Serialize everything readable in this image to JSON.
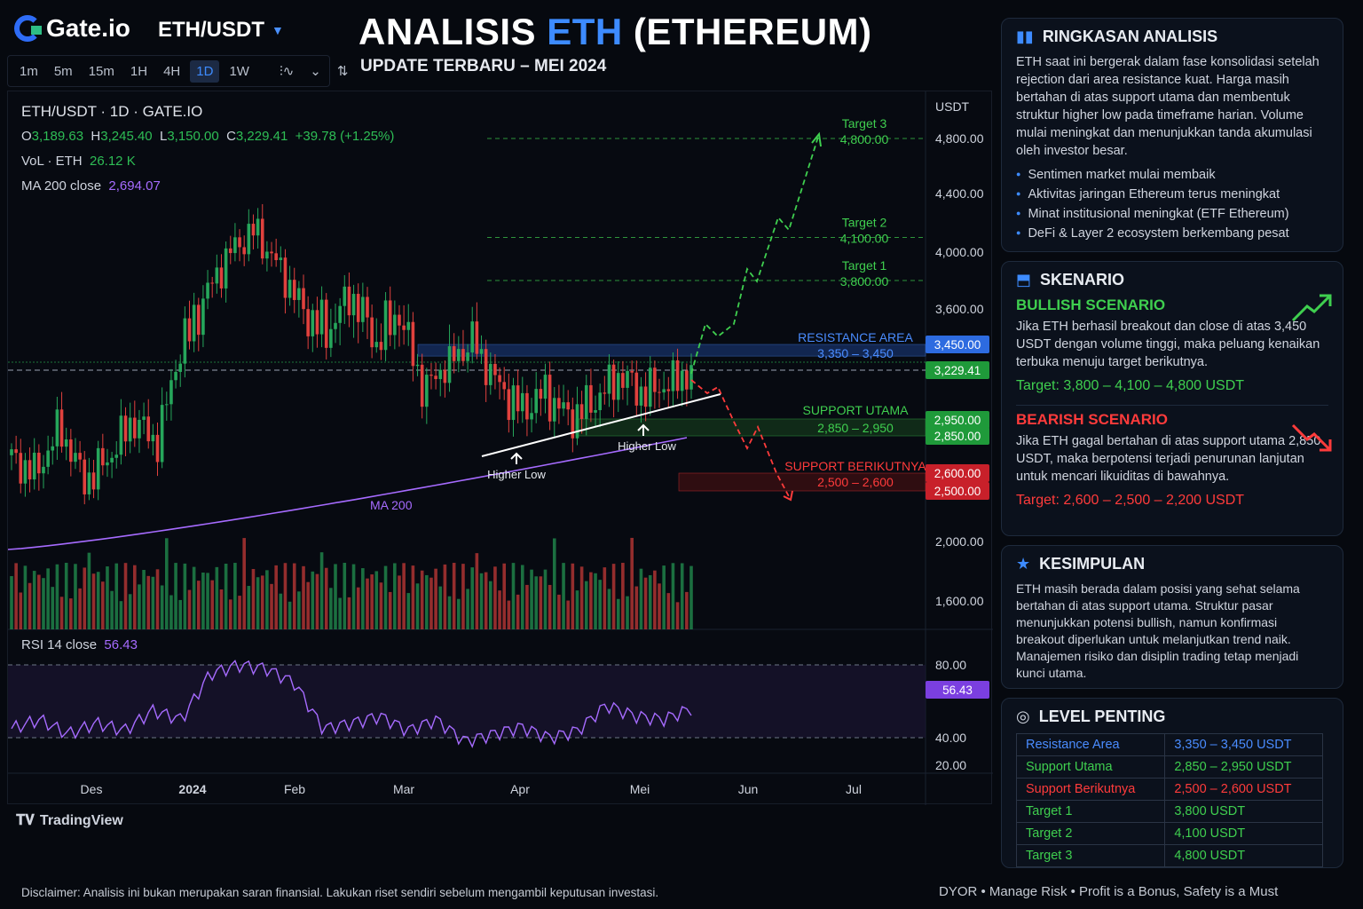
{
  "brand": "Gate.io",
  "pair": "ETH/USDT",
  "timeframes": [
    "1m",
    "5m",
    "15m",
    "1H",
    "4H",
    "1D",
    "1W"
  ],
  "active_timeframe": "1D",
  "title_prefix": "ANALISIS ",
  "title_eth": "ETH",
  "title_suffix": " (ETHEREUM)",
  "subtitle": "UPDATE TERBARU – MEI 2024",
  "legend": {
    "symbol": "ETH/USDT · 1D · GATE.IO",
    "o_label": "O",
    "o_val": "3,189.63",
    "h_label": "H",
    "h_val": "3,245.40",
    "l_label": "L",
    "l_val": "3,150.00",
    "c_label": "C",
    "c_val": "3,229.41",
    "change": "+39.78 (+1.25%)",
    "vol_label": "VoL · ETH",
    "vol_val": "26.12 K",
    "ma_label": "MA 200 close",
    "ma_val": "2,694.07"
  },
  "rsi_label": "RSI 14 close",
  "rsi_val": "56.43",
  "tradingview": "TradingView",
  "chart_data": {
    "type": "candlestick",
    "y_axis_unit": "USDT",
    "y_ticks": [
      "4,800.00",
      "4,400.00",
      "4,000.00",
      "3,600.00",
      "2,000.00",
      "1,600.00"
    ],
    "rsi_ticks": [
      "80.00",
      "40.00",
      "20.00"
    ],
    "x_ticks": [
      "Des",
      "2024",
      "Feb",
      "Mar",
      "Apr",
      "Mei",
      "Jun",
      "Jul"
    ],
    "price_tags": [
      {
        "label": "3,450.00",
        "kind": "blue"
      },
      {
        "label": "3,229.41",
        "kind": "green"
      },
      {
        "label": "2,950.00",
        "kind": "green"
      },
      {
        "label": "2,850.00",
        "kind": "green"
      },
      {
        "label": "2,600.00",
        "kind": "red"
      },
      {
        "label": "2,500.00",
        "kind": "red"
      },
      {
        "label": "56.43",
        "kind": "purple"
      }
    ],
    "zones": [
      {
        "name": "RESISTANCE AREA",
        "range": "3,350 – 3,450",
        "low": 3350,
        "high": 3450
      },
      {
        "name": "SUPPORT UTAMA",
        "range": "2,850 – 2,950",
        "low": 2850,
        "high": 2950
      },
      {
        "name": "SUPPORT BERIKUTNYA",
        "range": "2,500 – 2,600",
        "low": 2500,
        "high": 2600
      }
    ],
    "targets": [
      {
        "name": "Target 1",
        "value": "3,800.00"
      },
      {
        "name": "Target 2",
        "value": "4,100.00"
      },
      {
        "name": "Target 3",
        "value": "4,800.00"
      }
    ],
    "annotations": [
      "Higher Low",
      "Higher Low",
      "MA 200"
    ],
    "close_path": [
      2700,
      2600,
      2900,
      2550,
      2700,
      2950,
      2800,
      3400,
      3700,
      4000,
      4150,
      3900,
      3600,
      3500,
      3700,
      3450,
      3600,
      3100,
      3300,
      3450,
      3150,
      3000,
      3100,
      2950,
      3050,
      3200,
      3100,
      3150,
      3229
    ],
    "rsi_path": [
      45,
      50,
      42,
      48,
      44,
      55,
      50,
      75,
      80,
      78,
      70,
      45,
      48,
      52,
      44,
      50,
      38,
      42,
      46,
      40,
      44,
      58,
      52,
      50,
      56
    ]
  },
  "panels": {
    "summary": {
      "title": "RINGKASAN ANALISIS",
      "text": "ETH saat ini bergerak dalam fase konsolidasi setelah rejection dari area resistance kuat. Harga masih bertahan di atas support utama dan membentuk struktur higher low pada timeframe harian. Volume mulai meningkat dan menunjukkan tanda akumulasi oleh investor besar.",
      "bullets": [
        "Sentimen market mulai membaik",
        "Aktivitas jaringan Ethereum terus meningkat",
        "Minat institusional meningkat (ETF Ethereum)",
        "DeFi & Layer 2 ecosystem berkembang pesat"
      ]
    },
    "scenario": {
      "title": "SKENARIO",
      "bull_title": "BULLISH SCENARIO",
      "bull_text": "Jika ETH berhasil breakout dan close di atas 3,450 USDT dengan volume tinggi, maka peluang kenaikan terbuka menuju target berikutnya.",
      "bull_target": "Target: 3,800 – 4,100 – 4,800 USDT",
      "bear_title": "BEARISH SCENARIO",
      "bear_text": "Jika ETH gagal bertahan di atas support utama 2,850 USDT, maka berpotensi terjadi penurunan lanjutan untuk mencari likuiditas di bawahnya.",
      "bear_target": "Target: 2,600 – 2,500 – 2,200 USDT"
    },
    "conclusion": {
      "title": "KESIMPULAN",
      "text": "ETH masih berada dalam posisi yang sehat selama bertahan di atas support utama. Struktur pasar menunjukkan potensi bullish, namun konfirmasi breakout diperlukan untuk melanjutkan trend naik. Manajemen risiko dan disiplin trading tetap menjadi kunci utama."
    },
    "levels": {
      "title": "LEVEL PENTING",
      "rows": [
        {
          "name": "Resistance Area",
          "value": "3,350 – 3,450 USDT",
          "color": "#4a8cff"
        },
        {
          "name": "Support Utama",
          "value": "2,850 – 2,950 USDT",
          "color": "#3fcf4f"
        },
        {
          "name": "Support Berikutnya",
          "value": "2,500 – 2,600 USDT",
          "color": "#ff3b3b"
        },
        {
          "name": "Target 1",
          "value": "3,800 USDT",
          "color": "#3fcf4f"
        },
        {
          "name": "Target 2",
          "value": "4,100 USDT",
          "color": "#3fcf4f"
        },
        {
          "name": "Target 3",
          "value": "4,800 USDT",
          "color": "#3fcf4f"
        }
      ]
    }
  },
  "colors": {
    "up": "#26a65b",
    "down": "#e0413d",
    "blue": "#3d8bff",
    "purple": "#a66bff"
  },
  "disclaimer": "Disclaimer: Analisis ini bukan merupakan saran finansial. Lakukan riset sendiri sebelum mengambil keputusan investasi.",
  "footer": "DYOR • Manage Risk • Profit is a Bonus, Safety is a Must"
}
